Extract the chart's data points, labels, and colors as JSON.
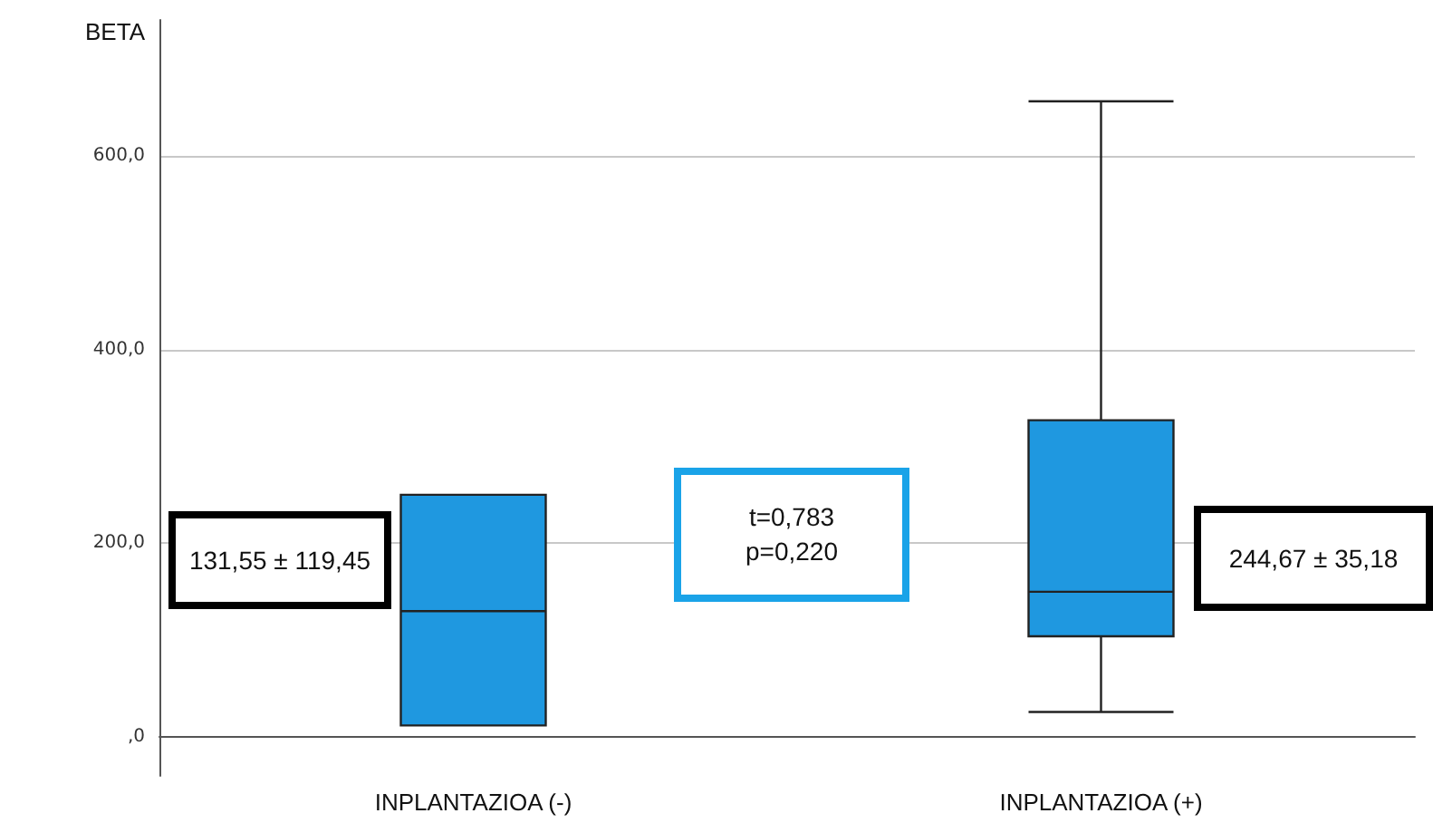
{
  "chart_data": {
    "type": "box",
    "ylabel": "BETA",
    "categories": [
      "INPLANTAZIOA (-)",
      "INPLANTAZIOA (+)"
    ],
    "series": [
      {
        "color": "#1f98e0",
        "boxes": [
          {
            "low": 12,
            "q1": 12,
            "median": 130,
            "q3": 250,
            "high": 250
          },
          {
            "low": 26,
            "q1": 104,
            "median": 150,
            "q3": 327,
            "high": 656
          }
        ]
      }
    ],
    "ylim": [
      -40,
      740
    ],
    "yticks": [
      {
        "value": 0,
        "label": ",0"
      },
      {
        "value": 200,
        "label": "200,0"
      },
      {
        "value": 400,
        "label": "400,0"
      },
      {
        "value": 600,
        "label": "600,0"
      }
    ],
    "grid": "y",
    "annotations": [
      "131,55 ± 119,45",
      "t=0,783\np=0,220",
      "244,67 ± 35,18"
    ]
  }
}
